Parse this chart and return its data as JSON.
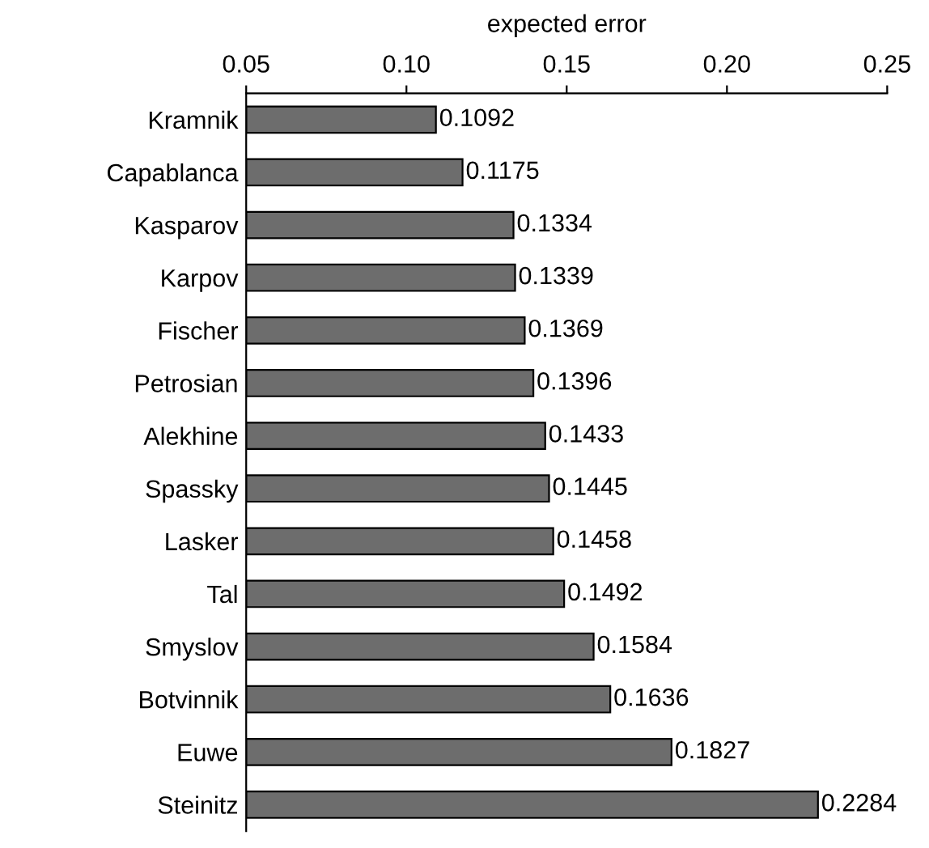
{
  "chart_data": {
    "type": "bar",
    "orientation": "horizontal",
    "xlabel": "expected error",
    "categories": [
      "Kramnik",
      "Capablanca",
      "Kasparov",
      "Karpov",
      "Fischer",
      "Petrosian",
      "Alekhine",
      "Spassky",
      "Lasker",
      "Tal",
      "Smyslov",
      "Botvinnik",
      "Euwe",
      "Steinitz"
    ],
    "values": [
      0.1092,
      0.1175,
      0.1334,
      0.1339,
      0.1369,
      0.1396,
      0.1433,
      0.1445,
      0.1458,
      0.1492,
      0.1584,
      0.1636,
      0.1827,
      0.2284
    ],
    "color": "#6d6d6d",
    "xlim": [
      0.05,
      0.25
    ],
    "xticks": [
      0.05,
      {
        "value": 0.1,
        "label": "0.10"
      },
      0.15,
      {
        "value": 0.2,
        "label": "0.20"
      },
      0.25
    ],
    "data_labels": true,
    "grid": false,
    "legend": false
  }
}
